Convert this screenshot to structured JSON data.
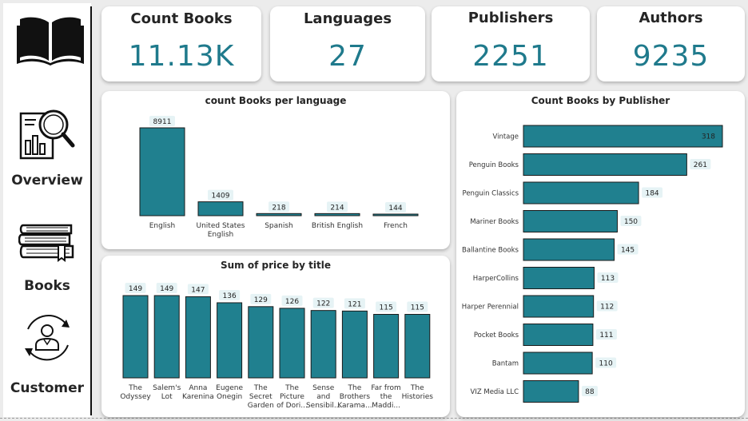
{
  "sidebar": {
    "items": [
      {
        "label": "Overview",
        "icon": "search-report-icon"
      },
      {
        "label": "Books",
        "icon": "books-stack-icon"
      },
      {
        "label": "Customer",
        "icon": "customer-cycle-icon"
      }
    ],
    "logo_icon": "open-book-icon"
  },
  "kpis": [
    {
      "title": "Count Books",
      "value": "11.13K"
    },
    {
      "title": "Languages",
      "value": "27"
    },
    {
      "title": "Publishers",
      "value": "2251"
    },
    {
      "title": "Authors",
      "value": "9235"
    }
  ],
  "colors": {
    "bar": "#20808f",
    "kpi_value": "#1f7a8c",
    "label_bg": "#e6f3f5"
  },
  "chart_data": [
    {
      "type": "bar",
      "title": "count Books per language",
      "categories": [
        [
          "English"
        ],
        [
          "United States",
          "English"
        ],
        [
          "Spanish"
        ],
        [
          "British English"
        ],
        [
          "French"
        ]
      ],
      "values": [
        8911,
        1409,
        218,
        214,
        144
      ],
      "xlabel": "",
      "ylabel": "",
      "ylim": [
        0,
        8911
      ]
    },
    {
      "type": "bar",
      "title": "Sum of price by title",
      "categories": [
        [
          "The",
          "Odyssey"
        ],
        [
          "Salem's",
          "Lot"
        ],
        [
          "Anna",
          "Karenina"
        ],
        [
          "Eugene",
          "Onegin"
        ],
        [
          "The",
          "Secret",
          "Garden"
        ],
        [
          "The",
          "Picture",
          "of Dori..."
        ],
        [
          "Sense",
          "and",
          "Sensibil..."
        ],
        [
          "The",
          "Brothers",
          "Karama..."
        ],
        [
          "Far from",
          "the",
          "Maddi..."
        ],
        [
          "The",
          "Histories"
        ]
      ],
      "values": [
        149,
        149,
        147,
        136,
        129,
        126,
        122,
        121,
        115,
        115
      ],
      "xlabel": "",
      "ylabel": "",
      "ylim": [
        0,
        149
      ]
    },
    {
      "type": "bar",
      "orientation": "horizontal",
      "title": "Count Books by Publisher",
      "categories": [
        "Vintage",
        "Penguin Books",
        "Penguin Classics",
        "Mariner Books",
        "Ballantine Books",
        "HarperCollins",
        "Harper Perennial",
        "Pocket Books",
        "Bantam",
        "VIZ Media LLC"
      ],
      "values": [
        318,
        261,
        184,
        150,
        145,
        113,
        112,
        111,
        110,
        88
      ],
      "xlabel": "",
      "ylabel": "",
      "xlim": [
        0,
        318
      ]
    }
  ]
}
